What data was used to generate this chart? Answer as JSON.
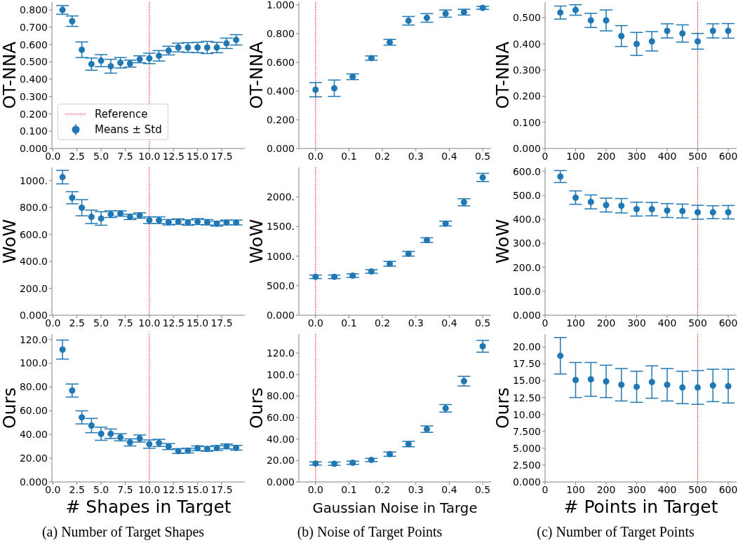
{
  "chart_data": [
    {
      "type": "scatter",
      "ylabel": "OT-NNA",
      "x": [
        1,
        2,
        3,
        4,
        5,
        6,
        7,
        8,
        9,
        10,
        11,
        12,
        13,
        14,
        15,
        16,
        17,
        18,
        19
      ],
      "marker": "circle",
      "legend": "bottom left",
      "series": [
        {
          "name": "Means ± Std",
          "color": "#1f77b4",
          "values": [
            0.8,
            0.735,
            0.57,
            0.487,
            0.507,
            0.475,
            0.495,
            0.49,
            0.515,
            0.52,
            0.535,
            0.565,
            0.583,
            0.583,
            0.583,
            0.583,
            0.583,
            0.607,
            0.627
          ],
          "errors": [
            0.025,
            0.03,
            0.045,
            0.035,
            0.035,
            0.04,
            0.03,
            0.02,
            0.02,
            0.03,
            0.03,
            0.025,
            0.025,
            0.028,
            0.03,
            0.035,
            0.03,
            0.03,
            0.03
          ]
        }
      ],
      "xlim": [
        -0.1,
        19.9
      ],
      "xticks": [
        {
          "value": 0,
          "label": "0.0"
        },
        2.5,
        {
          "value": 5,
          "label": "5.0"
        },
        7.5,
        {
          "value": 10,
          "label": "10.0"
        },
        12.5,
        {
          "value": 15,
          "label": "15.0"
        },
        17.5
      ],
      "ylim": [
        0,
        0.845
      ],
      "yticks": [
        {
          "value": 0,
          "label": "0.000"
        },
        {
          "value": 0.1,
          "label": "0.100"
        },
        {
          "value": 0.2,
          "label": "0.200"
        },
        {
          "value": 0.3,
          "label": "0.300"
        },
        {
          "value": 0.4,
          "label": "0.400"
        },
        {
          "value": 0.5,
          "label": "0.500"
        },
        {
          "value": 0.6,
          "label": "0.600"
        },
        {
          "value": 0.7,
          "label": "0.700"
        },
        {
          "value": 0.8,
          "label": "0.800"
        }
      ],
      "ref_lines": [
        {
          "axis": "x",
          "value": 10,
          "label": "Reference",
          "color": "#ff0000",
          "line_style": "dotted"
        }
      ]
    },
    {
      "type": "scatter",
      "ylabel": "OT-NNA",
      "x": [
        0,
        0.056,
        0.111,
        0.167,
        0.222,
        0.278,
        0.333,
        0.389,
        0.444,
        0.5
      ],
      "marker": "circle",
      "color": "#1f77b4",
      "values": [
        0.41,
        0.42,
        0.5,
        0.63,
        0.74,
        0.89,
        0.91,
        0.94,
        0.95,
        0.98
      ],
      "errors": [
        0.05,
        0.057,
        0.02,
        0.015,
        0.02,
        0.03,
        0.03,
        0.025,
        0.02,
        0.01
      ],
      "xlim": [
        -0.05,
        0.525
      ],
      "xticks": [
        {
          "value": 0,
          "label": "0.0"
        },
        0.1,
        0.2,
        0.3,
        0.4,
        0.5
      ],
      "ylim": [
        0,
        1.02
      ],
      "yticks": [
        {
          "value": 0,
          "label": "0.000"
        },
        {
          "value": 0.2,
          "label": "0.200"
        },
        {
          "value": 0.4,
          "label": "0.400"
        },
        {
          "value": 0.6,
          "label": "0.600"
        },
        {
          "value": 0.8,
          "label": "0.800"
        },
        {
          "value": 1,
          "label": "1.000"
        }
      ],
      "ref_lines": [
        {
          "axis": "x",
          "value": 0,
          "color": "#ff0000",
          "line_style": "dotted"
        }
      ]
    },
    {
      "type": "scatter",
      "ylabel": "OT-NNA",
      "x": [
        50,
        100,
        150,
        200,
        250,
        300,
        350,
        400,
        450,
        500,
        550,
        600
      ],
      "marker": "circle",
      "color": "#1f77b4",
      "values": [
        0.52,
        0.53,
        0.49,
        0.49,
        0.43,
        0.4,
        0.41,
        0.45,
        0.44,
        0.41,
        0.45,
        0.45
      ],
      "errors": [
        0.025,
        0.02,
        0.027,
        0.04,
        0.04,
        0.044,
        0.037,
        0.027,
        0.033,
        0.03,
        0.027,
        0.028
      ],
      "xlim": [
        0,
        627.5
      ],
      "xticks": [
        0,
        100,
        200,
        300,
        400,
        500,
        600
      ],
      "ylim": [
        0,
        0.56
      ],
      "yticks": [
        {
          "value": 0,
          "label": "0.000"
        },
        {
          "value": 0.1,
          "label": "0.100"
        },
        {
          "value": 0.2,
          "label": "0.200"
        },
        {
          "value": 0.3,
          "label": "0.300"
        },
        {
          "value": 0.4,
          "label": "0.400"
        },
        {
          "value": 0.5,
          "label": "0.500"
        }
      ],
      "ref_lines": [
        {
          "axis": "x",
          "value": 500,
          "color": "#ff0000",
          "line_style": "dotted"
        }
      ]
    },
    {
      "type": "scatter",
      "ylabel": "WoW",
      "x": [
        1,
        2,
        3,
        4,
        5,
        6,
        7,
        8,
        9,
        10,
        11,
        12,
        13,
        14,
        15,
        16,
        17,
        18,
        19
      ],
      "marker": "circle",
      "color": "#1f77b4",
      "values": [
        1025,
        872,
        798,
        730,
        718,
        750,
        755,
        730,
        740,
        705,
        705,
        690,
        695,
        688,
        695,
        690,
        680,
        688,
        688
      ],
      "errors": [
        50,
        45,
        60,
        50,
        50,
        25,
        20,
        20,
        20,
        25,
        25,
        20,
        20,
        20,
        22,
        20,
        18,
        18,
        18
      ],
      "xlim": [
        -0.1,
        19.9
      ],
      "xticks": [
        {
          "value": 0,
          "label": "0.0"
        },
        2.5,
        {
          "value": 5,
          "label": "5.0"
        },
        7.5,
        {
          "value": 10,
          "label": "10.0"
        },
        12.5,
        {
          "value": 15,
          "label": "15.0"
        },
        17.5
      ],
      "ylim": [
        0,
        1097
      ],
      "yticks": [
        {
          "value": 0,
          "label": "0.000"
        },
        {
          "value": 200,
          "label": "200.0"
        },
        {
          "value": 400,
          "label": "400.0"
        },
        {
          "value": 600,
          "label": "600.0"
        },
        {
          "value": 800,
          "label": "800.0"
        },
        {
          "value": 1000,
          "label": "1000."
        }
      ],
      "ref_lines": [
        {
          "axis": "x",
          "value": 10,
          "color": "#ff0000",
          "line_style": "dotted"
        }
      ]
    },
    {
      "type": "scatter",
      "ylabel": "WoW",
      "x": [
        0,
        0.056,
        0.111,
        0.167,
        0.222,
        0.278,
        0.333,
        0.389,
        0.444,
        0.5
      ],
      "marker": "circle",
      "color": "#1f77b4",
      "values": [
        650,
        650,
        670,
        740,
        870,
        1040,
        1270,
        1550,
        1910,
        2330
      ],
      "errors": [
        30,
        30,
        30,
        30,
        40,
        40,
        40,
        40,
        60,
        70
      ],
      "xlim": [
        -0.05,
        0.525
      ],
      "xticks": [
        {
          "value": 0,
          "label": "0.0"
        },
        0.1,
        0.2,
        0.3,
        0.4,
        0.5
      ],
      "ylim": [
        0,
        2500
      ],
      "yticks": [
        {
          "value": 0,
          "label": "0.000"
        },
        {
          "value": 500,
          "label": "500.0"
        },
        {
          "value": 1000,
          "label": "1000."
        },
        {
          "value": 1500,
          "label": "1500."
        },
        {
          "value": 2000,
          "label": "2000."
        }
      ],
      "ref_lines": [
        {
          "axis": "x",
          "value": 0,
          "color": "#ff0000",
          "line_style": "dotted"
        }
      ]
    },
    {
      "type": "scatter",
      "ylabel": "WoW",
      "x": [
        50,
        100,
        150,
        200,
        250,
        300,
        350,
        400,
        450,
        500,
        550,
        600
      ],
      "marker": "circle",
      "color": "#1f77b4",
      "values": [
        579,
        491,
        473,
        460,
        457,
        443,
        443,
        437,
        435,
        430,
        430,
        430
      ],
      "errors": [
        25,
        28,
        29,
        29,
        30,
        29,
        28,
        29,
        29,
        29,
        27,
        28
      ],
      "xlim": [
        0,
        627.5
      ],
      "xticks": [
        0,
        100,
        200,
        300,
        400,
        500,
        600
      ],
      "ylim": [
        0,
        617
      ],
      "yticks": [
        {
          "value": 0,
          "label": "0.000"
        },
        {
          "value": 100,
          "label": "100.0"
        },
        {
          "value": 200,
          "label": "200.0"
        },
        {
          "value": 300,
          "label": "300.0"
        },
        {
          "value": 400,
          "label": "400.0"
        },
        {
          "value": 500,
          "label": "500.0"
        },
        {
          "value": 600,
          "label": "600.0"
        }
      ],
      "ref_lines": [
        {
          "axis": "x",
          "value": 500,
          "color": "#ff0000",
          "line_style": "dotted"
        }
      ]
    },
    {
      "type": "scatter",
      "ylabel": "Ours",
      "xlabel": "# Shapes in Target",
      "x": [
        1,
        2,
        3,
        4,
        5,
        6,
        7,
        8,
        9,
        10,
        11,
        12,
        13,
        14,
        15,
        16,
        17,
        18,
        19
      ],
      "marker": "circle",
      "color": "#1f77b4",
      "values": [
        111.5,
        77,
        54.4,
        47.5,
        40.6,
        40.6,
        37.6,
        33.3,
        36.6,
        31.9,
        32.9,
        29.8,
        26,
        26.4,
        28.4,
        27.8,
        28.6,
        30,
        28.8
      ],
      "errors": [
        8,
        5.5,
        5.5,
        6,
        5.5,
        4,
        3,
        3,
        3,
        3.5,
        3,
        2.5,
        2,
        2,
        2,
        2,
        2,
        2,
        2
      ],
      "xlim": [
        -0.1,
        19.9
      ],
      "xticks": [
        {
          "value": 0,
          "label": "0.0"
        },
        2.5,
        {
          "value": 5,
          "label": "5.0"
        },
        7.5,
        {
          "value": 10,
          "label": "10.0"
        },
        12.5,
        {
          "value": 15,
          "label": "15.0"
        },
        17.5
      ],
      "ylim": [
        0,
        124.5
      ],
      "yticks": [
        {
          "value": 0,
          "label": "0.000"
        },
        {
          "value": 20,
          "label": "20.00"
        },
        {
          "value": 40,
          "label": "40.00"
        },
        {
          "value": 60,
          "label": "60.00"
        },
        {
          "value": 80,
          "label": "80.00"
        },
        {
          "value": 100,
          "label": "100.0"
        },
        {
          "value": 120,
          "label": "120.0"
        }
      ],
      "ref_lines": [
        {
          "axis": "x",
          "value": 10,
          "color": "#ff0000",
          "line_style": "dotted"
        }
      ],
      "annotations": [
        "(a) Number of Target Shapes"
      ]
    },
    {
      "type": "scatter",
      "ylabel": "Ours",
      "xlabel": "Gaussian Noise in Targe",
      "x": [
        0,
        0.056,
        0.111,
        0.167,
        0.222,
        0.278,
        0.333,
        0.389,
        0.444,
        0.5
      ],
      "marker": "circle",
      "color": "#1f77b4",
      "values": [
        17.2,
        17,
        17.9,
        20.5,
        25.9,
        35.3,
        49.2,
        68.6,
        93.9,
        126.4
      ],
      "errors": [
        1.5,
        1.5,
        1.5,
        1.5,
        2,
        2.5,
        3,
        3.5,
        4.5,
        5.5
      ],
      "xlim": [
        -0.05,
        0.525
      ],
      "xticks": [
        {
          "value": 0,
          "label": "0.0"
        },
        0.1,
        0.2,
        0.3,
        0.4,
        0.5
      ],
      "ylim": [
        0,
        137.7
      ],
      "yticks": [
        {
          "value": 0,
          "label": "0.000"
        },
        {
          "value": 20,
          "label": "20.00"
        },
        {
          "value": 40,
          "label": "40.00"
        },
        {
          "value": 60,
          "label": "60.00"
        },
        {
          "value": 80,
          "label": "80.00"
        },
        {
          "value": 100,
          "label": "100.0"
        },
        {
          "value": 120,
          "label": "120.0"
        }
      ],
      "ref_lines": [
        {
          "axis": "x",
          "value": 0,
          "color": "#ff0000",
          "line_style": "dotted"
        }
      ],
      "annotations": [
        "(b) Noise of Target Points"
      ]
    },
    {
      "type": "scatter",
      "ylabel": "Ours",
      "xlabel": "# Points in Target",
      "x": [
        50,
        100,
        150,
        200,
        250,
        300,
        350,
        400,
        450,
        500,
        550,
        600
      ],
      "marker": "circle",
      "color": "#1f77b4",
      "values": [
        18.7,
        15.1,
        15.2,
        14.9,
        14.4,
        14.1,
        14.8,
        14.4,
        14,
        14,
        14.3,
        14.2
      ],
      "errors": [
        2.7,
        2.6,
        2.5,
        2.4,
        2.4,
        2.3,
        2.4,
        2.4,
        2.4,
        2.5,
        2.4,
        2.5
      ],
      "xlim": [
        0,
        627.5
      ],
      "xticks": [
        0,
        100,
        200,
        300,
        400,
        500,
        600
      ],
      "ylim": [
        0,
        21.9
      ],
      "yticks": [
        {
          "value": 0,
          "label": "0.000"
        },
        {
          "value": 2.5,
          "label": "2.500"
        },
        {
          "value": 5,
          "label": "5.000"
        },
        {
          "value": 7.5,
          "label": "7.500"
        },
        {
          "value": 10,
          "label": "10.00"
        },
        {
          "value": 12.5,
          "label": "12.50"
        },
        {
          "value": 15,
          "label": "15.00"
        },
        {
          "value": 17.5,
          "label": "17.50"
        },
        {
          "value": 20,
          "label": "20.00"
        }
      ],
      "ref_lines": [
        {
          "axis": "x",
          "value": 500,
          "color": "#ff0000",
          "line_style": "dotted"
        }
      ],
      "annotations": [
        "(c) Number of Target Points"
      ]
    }
  ]
}
